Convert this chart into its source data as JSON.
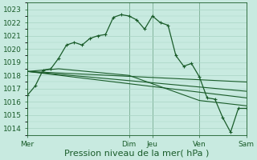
{
  "title": "Pression niveau de la mer( hPa )",
  "bg_color": "#c8eae0",
  "grid_color": "#a8d4c4",
  "line_color": "#1a5c2a",
  "ylim": [
    1013.5,
    1023.5
  ],
  "yticks": [
    1014,
    1015,
    1016,
    1017,
    1018,
    1019,
    1020,
    1021,
    1022,
    1023
  ],
  "x_day_labels": [
    "Mer",
    "Dim",
    "Jeu",
    "Ven",
    "Sam"
  ],
  "x_day_positions": [
    0,
    13,
    16,
    22,
    28
  ],
  "xlim": [
    0,
    28
  ],
  "main_line_x": [
    0,
    1,
    2,
    3,
    4,
    5,
    6,
    7,
    8,
    9,
    10,
    11,
    12,
    13,
    14,
    15,
    16,
    17,
    18,
    19,
    20,
    21,
    22,
    23,
    24,
    25,
    26,
    27,
    28
  ],
  "main_line_y": [
    1016.5,
    1017.2,
    1018.4,
    1018.5,
    1019.3,
    1020.3,
    1020.5,
    1020.3,
    1020.8,
    1021.0,
    1021.1,
    1022.4,
    1022.6,
    1022.5,
    1022.2,
    1021.5,
    1022.5,
    1022.0,
    1021.8,
    1019.5,
    1018.7,
    1018.9,
    1017.9,
    1016.3,
    1016.2,
    1014.8,
    1013.7,
    1015.5,
    1015.5
  ],
  "trend_line1_x": [
    0,
    28
  ],
  "trend_line1_y": [
    1018.3,
    1016.8
  ],
  "trend_line2_x": [
    0,
    28
  ],
  "trend_line2_y": [
    1018.3,
    1016.3
  ],
  "trend_line3_x": [
    0,
    28
  ],
  "trend_line3_y": [
    1018.3,
    1017.5
  ],
  "smooth_line_x": [
    0,
    4,
    13,
    22,
    28
  ],
  "smooth_line_y": [
    1018.3,
    1018.5,
    1018.0,
    1016.1,
    1015.7
  ],
  "tick_fontsize": 6.5,
  "xlabel_fontsize": 8.0
}
